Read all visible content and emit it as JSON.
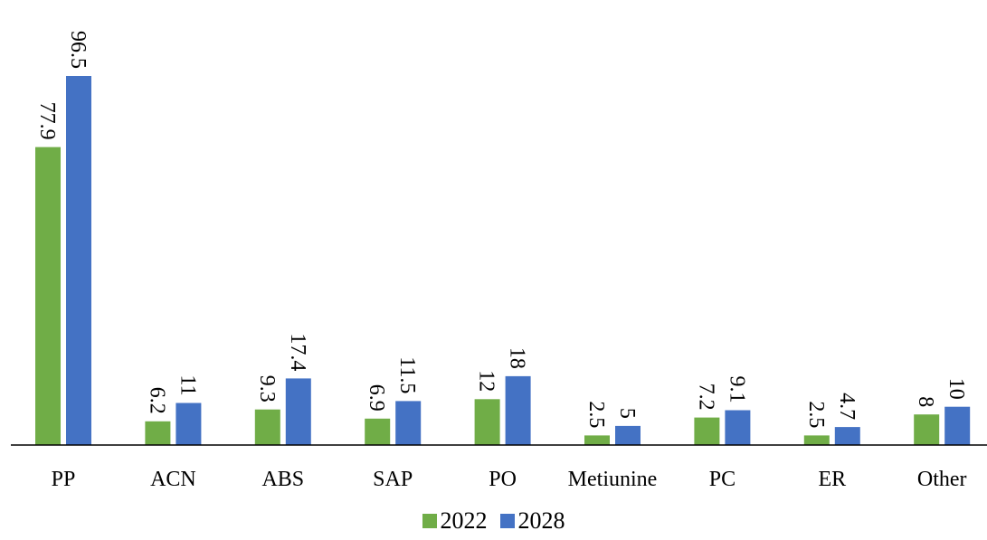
{
  "chart_data": {
    "type": "bar",
    "categories": [
      "PP",
      "ACN",
      "ABS",
      "SAP",
      "PO",
      "Metiunine",
      "PC",
      "ER",
      "Other"
    ],
    "series": [
      {
        "name": "2022",
        "values": [
          77.9,
          6.2,
          9.3,
          6.9,
          12,
          2.5,
          7.2,
          2.5,
          8
        ],
        "color": "#70AD47"
      },
      {
        "name": "2028",
        "values": [
          96.5,
          11,
          17.4,
          11.5,
          18,
          5,
          9.1,
          4.7,
          10
        ],
        "color": "#4472C4"
      }
    ],
    "ylim": [
      0,
      96.5
    ],
    "grid": false,
    "legend_position": "bottom",
    "data_labels": "rotated-vertical"
  }
}
